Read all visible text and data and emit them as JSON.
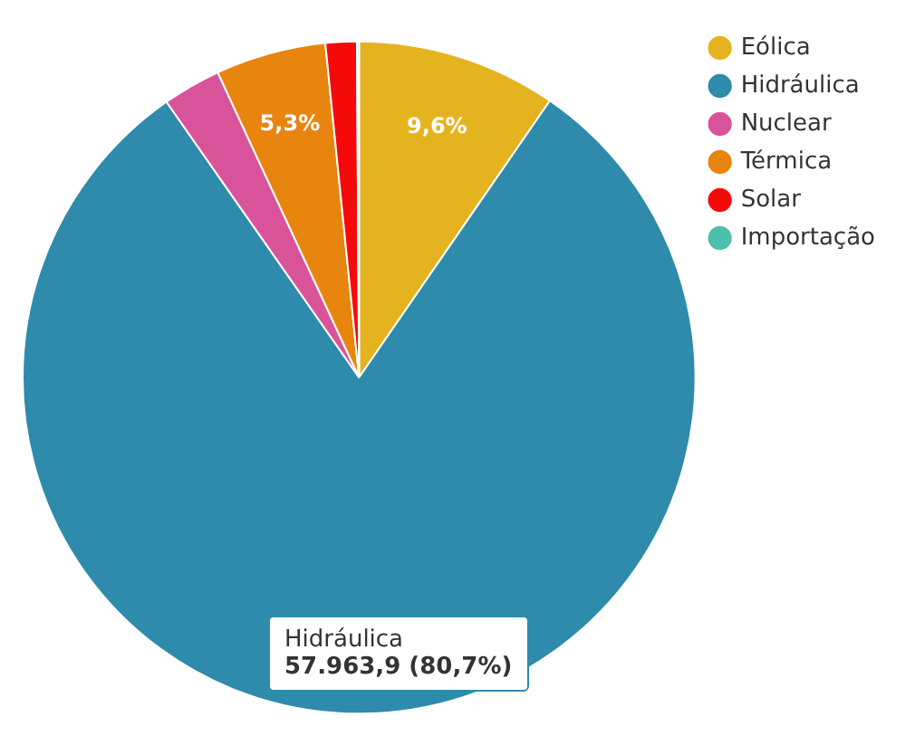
{
  "chart_data": {
    "type": "pie",
    "categories": [
      "Eólica",
      "Hidráulica",
      "Nuclear",
      "Térmica",
      "Solar",
      "Importação"
    ],
    "values": [
      9.6,
      80.7,
      2.8,
      5.3,
      1.5,
      0.1
    ],
    "colors": [
      "#e6b320",
      "#2e8bab",
      "#d9539b",
      "#e8850f",
      "#f50a0a",
      "#4dbfad"
    ],
    "value_labels": [
      "9,6%",
      null,
      null,
      "5,3%",
      null,
      null
    ],
    "legend": "top right",
    "annotations": [
      "Hidráulica",
      "57.963,9 (80,7%)"
    ]
  }
}
